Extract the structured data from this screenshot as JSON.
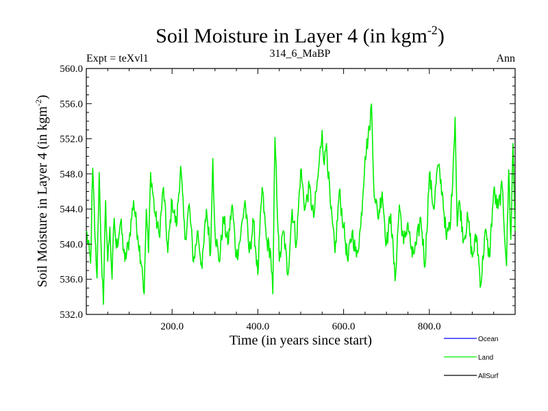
{
  "chart_data": {
    "type": "line",
    "title": "Soil Moisture in Layer 4 (in kgm",
    "title_sup": "-2",
    "title_close": ")",
    "subtitle_left": "Expt = teXvl1",
    "subtitle_center": "314_6_MaBP",
    "subtitle_right": "Ann",
    "xlabel": "Time (in years since start)",
    "ylabel": "Soil Moisture in Layer 4 (in kgm",
    "ylabel_sup": "-2",
    "ylabel_close": ")",
    "xlim": [
      0,
      1000
    ],
    "ylim": [
      532.0,
      560.0
    ],
    "xticks": [
      200,
      400,
      600,
      800
    ],
    "xtick_labels": [
      "200.0",
      "400.0",
      "600.0",
      "800.0"
    ],
    "yticks": [
      532,
      536,
      540,
      544,
      548,
      552,
      556,
      560
    ],
    "ytick_labels": [
      "532.0",
      "536.0",
      "540.0",
      "544.0",
      "548.0",
      "552.0",
      "556.0",
      "560.0"
    ],
    "legend": [
      {
        "name": "Ocean",
        "color": "#0000ff"
      },
      {
        "name": "Land",
        "color": "#00ee00"
      },
      {
        "name": "AllSurf",
        "color": "#000000"
      }
    ],
    "series": [
      {
        "name": "Land",
        "color": "#00ee00",
        "x": [
          0,
          10,
          15,
          20,
          25,
          30,
          35,
          40,
          45,
          50,
          55,
          60,
          65,
          70,
          80,
          90,
          100,
          110,
          120,
          130,
          135,
          140,
          145,
          150,
          160,
          170,
          180,
          190,
          200,
          210,
          220,
          230,
          240,
          250,
          260,
          270,
          280,
          290,
          295,
          300,
          310,
          320,
          330,
          340,
          350,
          360,
          370,
          380,
          390,
          400,
          410,
          420,
          430,
          435,
          440,
          450,
          460,
          470,
          480,
          490,
          500,
          510,
          520,
          530,
          540,
          550,
          555,
          560,
          570,
          580,
          590,
          600,
          610,
          620,
          630,
          640,
          650,
          660,
          665,
          670,
          680,
          690,
          700,
          710,
          720,
          730,
          740,
          750,
          760,
          770,
          780,
          790,
          800,
          810,
          820,
          830,
          840,
          850,
          860,
          865,
          870,
          880,
          890,
          900,
          910,
          920,
          930,
          940,
          950,
          960,
          970,
          980,
          985,
          990,
          995,
          1000
        ],
        "values": [
          541.5,
          537.8,
          548.7,
          541.0,
          536.1,
          548.2,
          539.0,
          533.1,
          545.0,
          538.0,
          542.0,
          536.0,
          543.0,
          539.5,
          542.5,
          538.0,
          540.5,
          545.0,
          541.0,
          537.5,
          534.3,
          544.0,
          539.0,
          548.2,
          543.5,
          541.0,
          546.5,
          539.0,
          545.0,
          542.0,
          548.9,
          540.5,
          544.5,
          538.0,
          541.5,
          537.2,
          544.0,
          539.0,
          549.8,
          541.5,
          538.0,
          543.0,
          540.0,
          544.5,
          538.5,
          541.0,
          545.0,
          539.0,
          542.5,
          536.5,
          546.5,
          540.5,
          539.0,
          534.3,
          552.2,
          538.0,
          541.5,
          536.5,
          544.0,
          540.0,
          548.5,
          544.0,
          546.5,
          543.0,
          547.5,
          553.0,
          549.0,
          551.5,
          544.0,
          539.0,
          546.0,
          542.0,
          538.0,
          541.5,
          538.5,
          542.0,
          550.0,
          553.0,
          556.0,
          547.0,
          543.0,
          546.0,
          540.0,
          543.5,
          535.8,
          544.5,
          540.0,
          542.5,
          538.5,
          540.0,
          543.0,
          537.5,
          548.0,
          544.0,
          549.0,
          546.0,
          540.5,
          543.0,
          554.5,
          542.0,
          545.0,
          540.5,
          543.0,
          538.5,
          541.0,
          535.3,
          541.5,
          538.5,
          546.0,
          544.0,
          546.5,
          537.5,
          548.5,
          540.5,
          551.5,
          541.5
        ]
      }
    ]
  }
}
